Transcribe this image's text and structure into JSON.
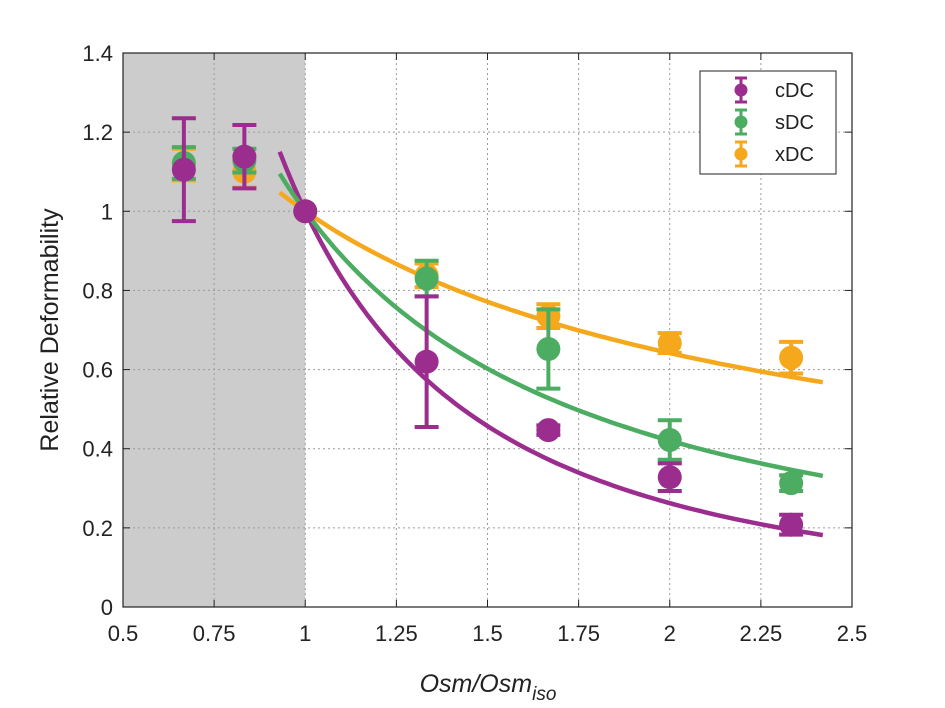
{
  "chart_data": {
    "type": "scatter",
    "xlabel": {
      "main": "Osm/Osm",
      "sub": "iso"
    },
    "ylabel": "Relative Deformability",
    "xlim": [
      0.5,
      2.5
    ],
    "ylim": [
      0,
      1.4
    ],
    "xticks": [
      "0.5",
      "0.75",
      "1",
      "1.25",
      "1.5",
      "1.75",
      "2",
      "2.25",
      "2.5"
    ],
    "yticks": [
      "0",
      "0.2",
      "0.4",
      "0.6",
      "0.8",
      "1",
      "1.2",
      "1.4"
    ],
    "grid": true,
    "shaded_region": {
      "x0": 0.5,
      "x1": 1.0,
      "color": "#cccccc"
    },
    "legend_position": "top-right",
    "series": [
      {
        "name": "cDC",
        "color": "#9b2d8e",
        "points": [
          {
            "x": 0.667,
            "y": 1.105,
            "err": 0.13
          },
          {
            "x": 0.833,
            "y": 1.138,
            "err": 0.08
          },
          {
            "x": 1.0,
            "y": 1.0,
            "err": 0.0
          },
          {
            "x": 1.333,
            "y": 0.62,
            "err": 0.165
          },
          {
            "x": 1.667,
            "y": 0.447,
            "err": 0.012
          },
          {
            "x": 2.0,
            "y": 0.328,
            "err": 0.035
          },
          {
            "x": 2.333,
            "y": 0.208,
            "err": 0.025
          }
        ],
        "fit": {
          "x0": 0.93,
          "x1": 2.42,
          "exponent": -1.93
        }
      },
      {
        "name": "sDC",
        "color": "#4cad62",
        "points": [
          {
            "x": 0.667,
            "y": 1.122,
            "err": 0.04
          },
          {
            "x": 0.833,
            "y": 1.128,
            "err": 0.03
          },
          {
            "x": 1.0,
            "y": 1.0,
            "err": 0.0
          },
          {
            "x": 1.333,
            "y": 0.83,
            "err": 0.045
          },
          {
            "x": 1.667,
            "y": 0.652,
            "err": 0.1
          },
          {
            "x": 2.0,
            "y": 0.422,
            "err": 0.05
          },
          {
            "x": 2.333,
            "y": 0.313,
            "err": 0.02
          }
        ],
        "fit": {
          "x0": 0.93,
          "x1": 2.42,
          "exponent": -1.25
        }
      },
      {
        "name": "xDC",
        "color": "#f5a81b",
        "points": [
          {
            "x": 0.667,
            "y": 1.118,
            "err": 0.04
          },
          {
            "x": 0.833,
            "y": 1.1,
            "err": 0.04
          },
          {
            "x": 1.0,
            "y": 1.0,
            "err": 0.0
          },
          {
            "x": 1.333,
            "y": 0.838,
            "err": 0.03
          },
          {
            "x": 1.667,
            "y": 0.735,
            "err": 0.03
          },
          {
            "x": 2.0,
            "y": 0.667,
            "err": 0.025
          },
          {
            "x": 2.333,
            "y": 0.63,
            "err": 0.04
          }
        ],
        "fit": {
          "x0": 0.93,
          "x1": 2.42,
          "exponent": -0.64
        }
      }
    ]
  }
}
